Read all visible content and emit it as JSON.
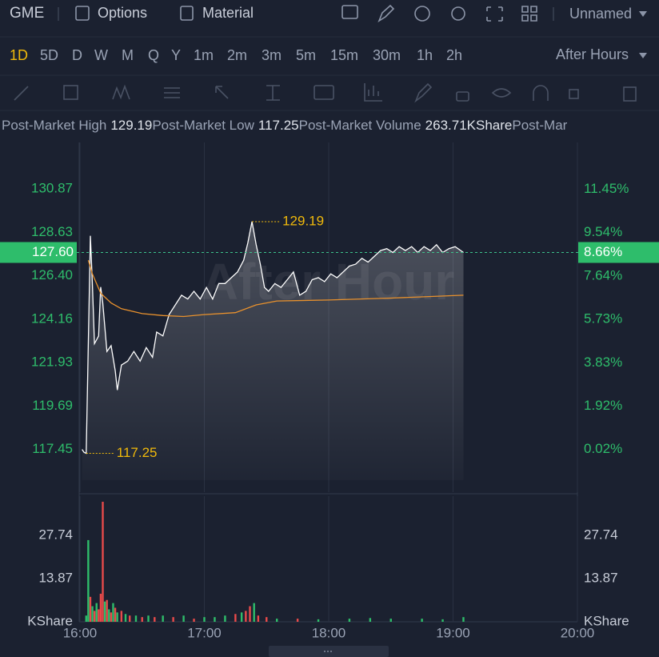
{
  "header": {
    "symbol": "GME",
    "tabs": [
      "Options",
      "Material"
    ],
    "layout": "Unnamed"
  },
  "periods": [
    "1D",
    "5D",
    "D",
    "W",
    "M",
    "Q",
    "Y",
    "1m",
    "2m",
    "3m",
    "5m",
    "15m",
    "30m",
    "1h",
    "2h"
  ],
  "session": "After Hours",
  "stats": [
    {
      "label": "Post-Market High",
      "value": "129.19"
    },
    {
      "label": "Post-Market Low",
      "value": "117.25"
    },
    {
      "label": "Post-Market Volume",
      "value": "263.71KShare"
    },
    {
      "label": "Post-Mar"
    }
  ],
  "chart_data": [
    {
      "type": "line",
      "watermark": "After Hour",
      "xlim": [
        "16:00",
        "20:00"
      ],
      "ylim": [
        115.25,
        133.27
      ],
      "yticks": [
        130.87,
        128.63,
        {
          "value": 126.4,
          "label": "126.40"
        },
        124.16,
        121.93,
        119.69,
        117.45
      ],
      "y2lim": [
        -1.85,
        13.5
      ],
      "y2ticks": [
        {
          "value": 11.45,
          "label": "11.45%"
        },
        {
          "value": 9.54,
          "label": "9.54%"
        },
        {
          "value": 7.64,
          "label": "7.64%"
        },
        {
          "value": 5.73,
          "label": "5.73%"
        },
        {
          "value": 3.83,
          "label": "3.83%"
        },
        {
          "value": 1.92,
          "label": "1.92%"
        },
        {
          "value": 0.02,
          "label": "0.02%"
        }
      ],
      "grid": true,
      "series": [
        {
          "color": "#ffffff",
          "x": [
            "16:01",
            "16:02",
            "16:03",
            "16:05",
            "16:06",
            "16:07",
            "16:09",
            "16:10",
            "16:11",
            "16:13",
            "16:15",
            "16:17",
            "16:18",
            "16:20",
            "16:23",
            "16:26",
            "16:29",
            "16:32",
            "16:35",
            "16:37",
            "16:40",
            "16:43",
            "16:46",
            "16:49",
            "16:52",
            "16:55",
            "16:58",
            "17:01",
            "17:04",
            "17:07",
            "17:10",
            "17:13",
            "17:16",
            "17:19",
            "17:21",
            "17:23",
            "17:25",
            "17:27",
            "17:29",
            "17:31",
            "17:34",
            "17:37",
            "17:40",
            "17:43",
            "17:46",
            "17:49",
            "17:52",
            "17:55",
            "17:58",
            "18:01",
            "18:04",
            "18:07",
            "18:10",
            "18:13",
            "18:16",
            "18:19",
            "18:22",
            "18:25",
            "18:28",
            "18:31",
            "18:34",
            "18:37",
            "18:40",
            "18:43",
            "18:46",
            "18:49",
            "18:52",
            "18:55",
            "18:58",
            "19:01",
            "19:05"
          ],
          "values": [
            117.45,
            117.3,
            117.25,
            128.46,
            126.0,
            122.9,
            123.3,
            125.82,
            125.0,
            122.5,
            122.8,
            121.5,
            120.51,
            121.8,
            122.0,
            122.5,
            122.0,
            122.7,
            122.2,
            123.5,
            123.3,
            124.4,
            124.9,
            125.4,
            125.2,
            125.6,
            125.2,
            125.8,
            125.2,
            126.0,
            126.0,
            126.3,
            126.6,
            127.2,
            128.1,
            129.19,
            128.0,
            127.0,
            125.8,
            125.6,
            126.0,
            125.8,
            126.2,
            126.6,
            125.4,
            125.6,
            126.2,
            126.3,
            126.1,
            126.5,
            126.3,
            126.6,
            126.9,
            127.0,
            127.3,
            127.1,
            127.4,
            127.7,
            127.8,
            127.6,
            127.9,
            127.7,
            127.9,
            127.6,
            127.9,
            127.7,
            128.0,
            127.6,
            127.8,
            127.9,
            127.6
          ]
        },
        {
          "color": "#e8912d",
          "x": [
            "16:04",
            "16:06",
            "16:10",
            "16:15",
            "16:20",
            "16:30",
            "16:40",
            "16:50",
            "17:00",
            "17:15",
            "17:25",
            "17:35",
            "18:00",
            "18:30",
            "19:05"
          ],
          "values": [
            127.2,
            126.5,
            125.5,
            125.0,
            124.7,
            124.45,
            124.35,
            124.3,
            124.4,
            124.5,
            124.9,
            125.1,
            125.15,
            125.25,
            125.4
          ]
        }
      ],
      "annotations": [
        {
          "x": "17:23",
          "value": 129.19
        },
        {
          "x": "16:03",
          "value": 117.25
        }
      ],
      "annotation_color": "#f0b90b",
      "last_price": {
        "value": 127.6,
        "label": "127.60"
      },
      "last_change": {
        "value": 8.66,
        "label": "8.66%"
      },
      "last_color": "#2ebd6b"
    },
    {
      "type": "bar",
      "xlim": [
        "16:00",
        "20:00"
      ],
      "xticks": [
        "16:00",
        "17:00",
        "18:00",
        "19:00",
        "20:00"
      ],
      "ylim": [
        0,
        40.3
      ],
      "yticks": [
        13.87,
        27.74
      ],
      "y_unit": "KShare",
      "x": [
        "16:03",
        "16:04",
        "16:05",
        "16:06",
        "16:07",
        "16:08",
        "16:09",
        "16:10",
        "16:11",
        "16:12",
        "16:13",
        "16:14",
        "16:15",
        "16:16",
        "16:17",
        "16:18",
        "16:20",
        "16:22",
        "16:24",
        "16:27",
        "16:30",
        "16:33",
        "16:36",
        "16:40",
        "16:45",
        "16:50",
        "16:55",
        "17:00",
        "17:05",
        "17:10",
        "17:15",
        "17:18",
        "17:20",
        "17:22",
        "17:24",
        "17:26",
        "17:30",
        "17:35",
        "17:45",
        "17:55",
        "18:10",
        "18:20",
        "18:30",
        "18:45",
        "18:55",
        "19:05"
      ],
      "values": [
        2.0,
        26.2,
        8.0,
        5.0,
        3.5,
        6.0,
        4.0,
        9.0,
        38.5,
        6.5,
        7.0,
        4.0,
        3.0,
        6.0,
        4.5,
        3.0,
        3.5,
        2.5,
        2.0,
        2.0,
        1.5,
        2.0,
        1.5,
        2.0,
        1.5,
        2.0,
        1.0,
        1.5,
        1.5,
        2.0,
        2.5,
        3.0,
        3.5,
        5.0,
        6.0,
        2.0,
        1.5,
        1.0,
        1.0,
        0.8,
        1.0,
        1.2,
        1.0,
        1.0,
        0.8,
        1.5
      ],
      "colors": [
        "#2ebd6b",
        "#2ebd6b",
        "#e84a4a",
        "#2ebd6b",
        "#e84a4a",
        "#2ebd6b",
        "#e84a4a",
        "#e84a4a",
        "#e84a4a",
        "#2ebd6b",
        "#e84a4a",
        "#2ebd6b",
        "#e84a4a",
        "#2ebd6b",
        "#e84a4a",
        "#2ebd6b",
        "#e84a4a",
        "#2ebd6b",
        "#e84a4a",
        "#2ebd6b",
        "#e84a4a",
        "#2ebd6b",
        "#e84a4a",
        "#2ebd6b",
        "#e84a4a",
        "#2ebd6b",
        "#e84a4a",
        "#2ebd6b",
        "#2ebd6b",
        "#2ebd6b",
        "#e84a4a",
        "#2ebd6b",
        "#e84a4a",
        "#e84a4a",
        "#2ebd6b",
        "#e84a4a",
        "#e84a4a",
        "#2ebd6b",
        "#e84a4a",
        "#2ebd6b",
        "#2ebd6b",
        "#2ebd6b",
        "#2ebd6b",
        "#2ebd6b",
        "#2ebd6b",
        "#2ebd6b"
      ]
    }
  ]
}
